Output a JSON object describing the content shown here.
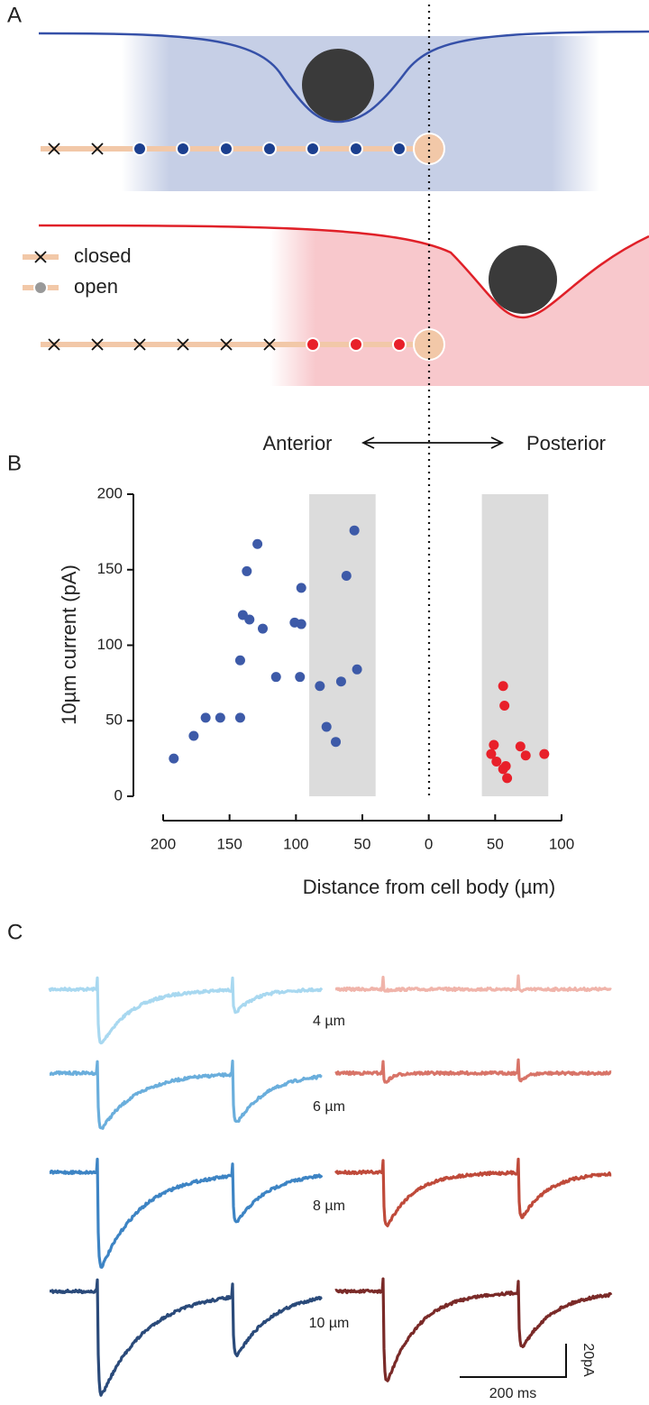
{
  "panels": {
    "a": "A",
    "b": "B",
    "c": "C"
  },
  "diagram": {
    "closed": "closed",
    "open": "open",
    "anterior": "Anterior",
    "posterior": "Posterior"
  },
  "chart_data": {
    "type": "scatter",
    "x_label": "Distance from cell body (µm)",
    "y_label": "10µm current (pA)",
    "xlim": [
      -200,
      100
    ],
    "ylim": [
      0,
      200
    ],
    "xticks": [
      {
        "value": -200,
        "label": "200"
      },
      {
        "value": -150,
        "label": "150"
      },
      {
        "value": -100,
        "label": "100"
      },
      {
        "value": -50,
        "label": "50"
      },
      0,
      50,
      100
    ],
    "yticks": [
      0,
      50,
      100,
      150,
      200
    ],
    "bands": [
      [
        -90,
        -40
      ],
      [
        40,
        90
      ]
    ],
    "band_color": "#dcdcdc",
    "series": [
      {
        "color": "#3d5aa8",
        "x": [
          -192,
          -177,
          -168,
          -157,
          -142,
          -142,
          -140,
          -137,
          -135,
          -129,
          -125,
          -115,
          -101,
          -97,
          -96,
          -96,
          -82,
          -77,
          -70,
          -66,
          -62,
          -56,
          -54
        ],
        "values": [
          25,
          40,
          52,
          52,
          52,
          90,
          120,
          149,
          117,
          167,
          111,
          79,
          115,
          79,
          114,
          138,
          73,
          46,
          36,
          76,
          146,
          176,
          84
        ]
      },
      {
        "color": "#e8202a",
        "x": [
          56,
          57,
          49,
          47,
          51,
          56,
          58,
          69,
          73,
          87,
          59
        ],
        "values": [
          73,
          60,
          34,
          28,
          23,
          18,
          20,
          33,
          27,
          28,
          12
        ]
      }
    ]
  },
  "traces": {
    "labels": [
      "4 µm",
      "6 µm",
      "8 µm",
      "10 µm"
    ],
    "scale_y": "20pA",
    "scale_x": "200 ms"
  }
}
